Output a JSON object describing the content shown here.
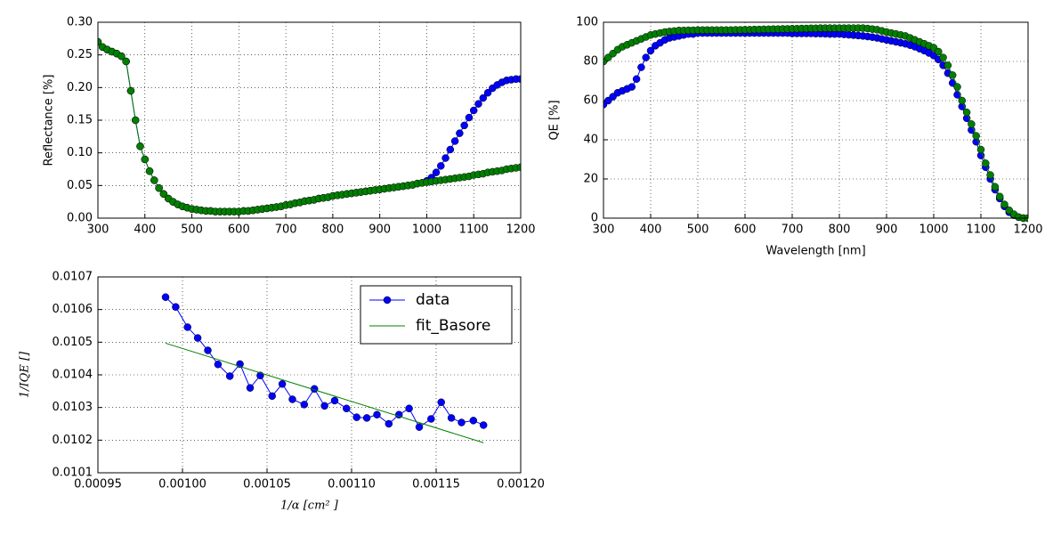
{
  "chart_data": [
    {
      "type": "line",
      "ylabel": "Reflectance [%]",
      "grid": true,
      "xlim": [
        300,
        1200
      ],
      "xticks": [
        300,
        400,
        500,
        600,
        700,
        800,
        900,
        1000,
        1100,
        1200
      ],
      "ylim": [
        0,
        0.3
      ],
      "yticks": [
        {
          "value": 0,
          "label": "0.00"
        },
        {
          "value": 0.05,
          "label": "0.05"
        },
        {
          "value": 0.1,
          "label": "0.10"
        },
        {
          "value": 0.15,
          "label": "0.15"
        },
        {
          "value": 0.2,
          "label": "0.20"
        },
        {
          "value": 0.25,
          "label": "0.25"
        },
        {
          "value": 0.3,
          "label": "0.30"
        }
      ],
      "x": [
        300,
        310,
        320,
        330,
        340,
        350,
        360,
        370,
        380,
        390,
        400,
        410,
        420,
        430,
        440,
        450,
        460,
        470,
        480,
        490,
        500,
        510,
        520,
        530,
        540,
        550,
        560,
        570,
        580,
        590,
        600,
        610,
        620,
        630,
        640,
        650,
        660,
        670,
        680,
        690,
        700,
        710,
        720,
        730,
        740,
        750,
        760,
        770,
        780,
        790,
        800,
        810,
        820,
        830,
        840,
        850,
        860,
        870,
        880,
        890,
        900,
        910,
        920,
        930,
        940,
        950,
        960,
        970,
        980,
        990,
        1000,
        1010,
        1020,
        1030,
        1040,
        1050,
        1060,
        1070,
        1080,
        1090,
        1100,
        1110,
        1120,
        1130,
        1140,
        1150,
        1160,
        1170,
        1180,
        1190,
        1200
      ],
      "series": [
        {
          "color": "#0000ff",
          "marker": true,
          "values": [
            0.27,
            0.262,
            0.258,
            0.255,
            0.252,
            0.248,
            0.24,
            0.195,
            0.15,
            0.11,
            0.09,
            0.072,
            0.058,
            0.046,
            0.037,
            0.03,
            0.025,
            0.021,
            0.018,
            0.016,
            0.014,
            0.013,
            0.012,
            0.011,
            0.011,
            0.01,
            0.01,
            0.01,
            0.01,
            0.01,
            0.01,
            0.011,
            0.011,
            0.012,
            0.013,
            0.014,
            0.015,
            0.016,
            0.017,
            0.018,
            0.02,
            0.021,
            0.023,
            0.024,
            0.026,
            0.027,
            0.028,
            0.03,
            0.031,
            0.032,
            0.034,
            0.035,
            0.036,
            0.037,
            0.038,
            0.039,
            0.04,
            0.041,
            0.042,
            0.043,
            0.044,
            0.045,
            0.046,
            0.047,
            0.048,
            0.049,
            0.05,
            0.051,
            0.053,
            0.054,
            0.057,
            0.062,
            0.07,
            0.08,
            0.092,
            0.105,
            0.118,
            0.13,
            0.142,
            0.154,
            0.165,
            0.175,
            0.184,
            0.192,
            0.199,
            0.204,
            0.208,
            0.211,
            0.212,
            0.213,
            0.213
          ]
        },
        {
          "color": "#008000",
          "marker": true,
          "values": [
            0.27,
            0.262,
            0.258,
            0.255,
            0.252,
            0.248,
            0.24,
            0.195,
            0.15,
            0.11,
            0.09,
            0.072,
            0.058,
            0.046,
            0.037,
            0.03,
            0.025,
            0.021,
            0.018,
            0.016,
            0.014,
            0.013,
            0.012,
            0.011,
            0.011,
            0.01,
            0.01,
            0.01,
            0.01,
            0.01,
            0.01,
            0.011,
            0.011,
            0.012,
            0.013,
            0.014,
            0.015,
            0.016,
            0.017,
            0.018,
            0.02,
            0.021,
            0.023,
            0.024,
            0.026,
            0.027,
            0.028,
            0.03,
            0.031,
            0.032,
            0.034,
            0.035,
            0.036,
            0.037,
            0.038,
            0.039,
            0.04,
            0.041,
            0.042,
            0.043,
            0.044,
            0.045,
            0.046,
            0.047,
            0.048,
            0.049,
            0.05,
            0.051,
            0.053,
            0.054,
            0.055,
            0.056,
            0.057,
            0.058,
            0.059,
            0.06,
            0.061,
            0.062,
            0.063,
            0.064,
            0.066,
            0.067,
            0.068,
            0.07,
            0.071,
            0.072,
            0.073,
            0.075,
            0.076,
            0.077,
            0.078
          ]
        }
      ]
    },
    {
      "type": "line",
      "xlabel": "Wavelength [nm]",
      "ylabel": "QE [%]",
      "grid": true,
      "xlim": [
        300,
        1200
      ],
      "xticks": [
        300,
        400,
        500,
        600,
        700,
        800,
        900,
        1000,
        1100,
        1200
      ],
      "ylim": [
        0,
        100
      ],
      "yticks": [
        0,
        20,
        40,
        60,
        80,
        100
      ],
      "x": [
        300,
        310,
        320,
        330,
        340,
        350,
        360,
        370,
        380,
        390,
        400,
        410,
        420,
        430,
        440,
        450,
        460,
        470,
        480,
        490,
        500,
        510,
        520,
        530,
        540,
        550,
        560,
        570,
        580,
        590,
        600,
        610,
        620,
        630,
        640,
        650,
        660,
        670,
        680,
        690,
        700,
        710,
        720,
        730,
        740,
        750,
        760,
        770,
        780,
        790,
        800,
        810,
        820,
        830,
        840,
        850,
        860,
        870,
        880,
        890,
        900,
        910,
        920,
        930,
        940,
        950,
        960,
        970,
        980,
        990,
        1000,
        1010,
        1020,
        1030,
        1040,
        1050,
        1060,
        1070,
        1080,
        1090,
        1100,
        1110,
        1120,
        1130,
        1140,
        1150,
        1160,
        1170,
        1180,
        1190,
        1200
      ],
      "series": [
        {
          "color": "#0000ff",
          "marker": true,
          "values": [
            58,
            60,
            62,
            64,
            65,
            66,
            67,
            71,
            77,
            82,
            85.5,
            88,
            89.5,
            91,
            92,
            92.5,
            93,
            93.5,
            94,
            94,
            94.5,
            94.5,
            94.5,
            94.5,
            94.5,
            94.5,
            94.5,
            94.5,
            94.5,
            94.5,
            94.5,
            94.5,
            94.5,
            94.5,
            94.5,
            94.5,
            94.5,
            94.5,
            94.5,
            94.5,
            94.3,
            94.3,
            94.3,
            94.3,
            94.3,
            94.2,
            94.2,
            94.1,
            94,
            94,
            94,
            93.8,
            93.6,
            93.4,
            93.2,
            93,
            92.7,
            92.4,
            92,
            91.5,
            91,
            90.5,
            90,
            89.5,
            89,
            88.3,
            87.5,
            86.5,
            85.5,
            84.3,
            83,
            81,
            78,
            74,
            69,
            63,
            57,
            51,
            45,
            39,
            32,
            26,
            20,
            14.5,
            10,
            6,
            3,
            1.5,
            0.5,
            0,
            0
          ]
        },
        {
          "color": "#008000",
          "marker": true,
          "values": [
            80,
            82,
            84,
            86,
            87.5,
            88.5,
            89.5,
            90.5,
            91.5,
            92.5,
            93.5,
            94,
            94.5,
            95,
            95.3,
            95.5,
            95.8,
            95.8,
            95.9,
            95.9,
            96,
            96,
            96,
            96,
            96,
            96,
            96,
            96,
            96.1,
            96.1,
            96.2,
            96.2,
            96.3,
            96.3,
            96.4,
            96.4,
            96.5,
            96.5,
            96.6,
            96.6,
            96.7,
            96.7,
            96.8,
            96.8,
            96.9,
            96.9,
            97,
            97,
            97,
            97,
            97,
            97,
            97,
            97,
            97,
            97,
            96.8,
            96.5,
            96.2,
            95.6,
            95,
            94.5,
            94,
            93.5,
            93,
            92,
            91,
            90,
            89,
            88,
            87,
            85,
            82,
            78,
            73,
            67,
            60,
            54,
            48,
            42,
            35,
            28,
            22,
            16,
            11,
            7,
            4,
            2,
            0.5,
            0,
            0
          ]
        }
      ]
    },
    {
      "type": "line",
      "xlabel": "1/α [cm² ]",
      "ylabel": "1/IQE []",
      "grid": true,
      "legend": "upper right",
      "xlim": [
        0.00095,
        0.0012
      ],
      "xticks": [
        {
          "value": 0.00095,
          "label": "0.00095"
        },
        {
          "value": 0.001,
          "label": "0.00100"
        },
        {
          "value": 0.00105,
          "label": "0.00105"
        },
        {
          "value": 0.0011,
          "label": "0.00110"
        },
        {
          "value": 0.00115,
          "label": "0.00115"
        },
        {
          "value": 0.0012,
          "label": "0.00120"
        }
      ],
      "ylim": [
        0.0101,
        0.0107
      ],
      "yticks": [
        0.0101,
        0.0102,
        0.0103,
        0.0104,
        0.0105,
        0.0106,
        0.0107
      ],
      "series": [
        {
          "name": "data",
          "color": "#0000ff",
          "marker": true,
          "x": [
            0.00099,
            0.000996,
            0.001003,
            0.001009,
            0.001015,
            0.001021,
            0.001028,
            0.001034,
            0.00104,
            0.001046,
            0.001053,
            0.001059,
            0.001065,
            0.001072,
            0.001078,
            0.001084,
            0.00109,
            0.001097,
            0.001103,
            0.001109,
            0.001115,
            0.001122,
            0.001128,
            0.001134,
            0.00114,
            0.001147,
            0.001153,
            0.001159,
            0.001165,
            0.001172,
            0.001178
          ],
          "values": [
            0.010638,
            0.010608,
            0.010546,
            0.010513,
            0.010475,
            0.010432,
            0.010396,
            0.010433,
            0.01036,
            0.010398,
            0.010335,
            0.010372,
            0.010325,
            0.010309,
            0.010357,
            0.010305,
            0.010321,
            0.010297,
            0.01027,
            0.010268,
            0.010278,
            0.01025,
            0.010278,
            0.010297,
            0.01024,
            0.010265,
            0.010316,
            0.010268,
            0.010254,
            0.01026,
            0.010246
          ]
        },
        {
          "name": "fit_Basore",
          "color": "#008000",
          "marker": false,
          "x": [
            0.00099,
            0.001178
          ],
          "values": [
            0.010497,
            0.010192
          ]
        }
      ]
    }
  ]
}
